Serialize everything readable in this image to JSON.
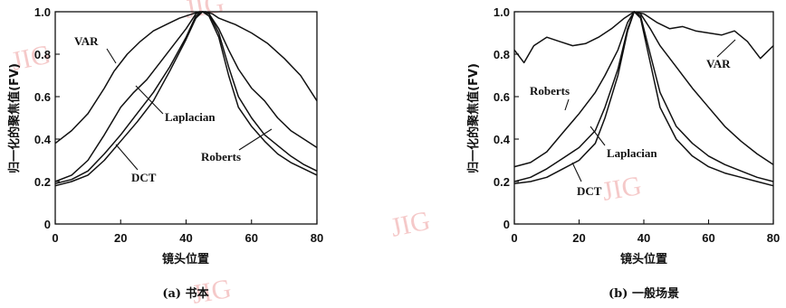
{
  "watermark": "JIG",
  "chart_data": [
    {
      "type": "line",
      "caption": "(a) 书本",
      "xlabel": "镜头位置",
      "ylabel": "归一化的聚焦值(FV)",
      "xlim": [
        0,
        80
      ],
      "ylim": [
        0,
        1.0
      ],
      "xticks": [
        "0",
        "20",
        "40",
        "60",
        "80"
      ],
      "yticks": [
        "0",
        "0.2",
        "0.4",
        "0.6",
        "0.8",
        "1.0"
      ],
      "grid": false,
      "legend": "inline labels",
      "series": [
        {
          "name": "VAR",
          "x": [
            0,
            5,
            10,
            15,
            18,
            22,
            26,
            30,
            34,
            38,
            42,
            44,
            46,
            48,
            50,
            55,
            60,
            65,
            70,
            75,
            80
          ],
          "y": [
            0.38,
            0.44,
            0.52,
            0.64,
            0.72,
            0.8,
            0.86,
            0.91,
            0.94,
            0.97,
            0.99,
            1.0,
            1.0,
            0.99,
            0.97,
            0.94,
            0.9,
            0.85,
            0.78,
            0.7,
            0.58
          ]
        },
        {
          "name": "Roberts",
          "x": [
            0,
            5,
            10,
            15,
            20,
            24,
            28,
            32,
            36,
            40,
            43,
            45,
            47,
            50,
            53,
            56,
            60,
            64,
            68,
            72,
            76,
            80
          ],
          "y": [
            0.2,
            0.23,
            0.3,
            0.42,
            0.55,
            0.62,
            0.68,
            0.76,
            0.84,
            0.92,
            0.99,
            1.0,
            0.99,
            0.92,
            0.82,
            0.73,
            0.64,
            0.58,
            0.5,
            0.44,
            0.4,
            0.36
          ]
        },
        {
          "name": "Laplacian",
          "x": [
            0,
            5,
            10,
            15,
            20,
            25,
            30,
            35,
            40,
            43,
            45,
            47,
            50,
            53,
            56,
            60,
            64,
            68,
            72,
            76,
            80
          ],
          "y": [
            0.19,
            0.21,
            0.25,
            0.33,
            0.42,
            0.52,
            0.62,
            0.74,
            0.88,
            0.98,
            1.0,
            0.99,
            0.9,
            0.74,
            0.6,
            0.5,
            0.42,
            0.37,
            0.32,
            0.28,
            0.25
          ]
        },
        {
          "name": "DCT",
          "x": [
            0,
            5,
            10,
            15,
            20,
            25,
            30,
            35,
            40,
            43,
            45,
            47,
            50,
            53,
            56,
            60,
            64,
            68,
            72,
            76,
            80
          ],
          "y": [
            0.18,
            0.2,
            0.23,
            0.3,
            0.39,
            0.48,
            0.58,
            0.72,
            0.87,
            0.97,
            1.0,
            0.98,
            0.88,
            0.7,
            0.55,
            0.46,
            0.39,
            0.33,
            0.29,
            0.26,
            0.23
          ]
        }
      ],
      "annotations": [
        "VAR",
        "Laplacian",
        "Roberts",
        "DCT"
      ]
    },
    {
      "type": "line",
      "caption": "(b) 一般场景",
      "xlabel": "镜头位置",
      "ylabel": "归一化的聚焦值(FV)",
      "xlim": [
        0,
        80
      ],
      "ylim": [
        0,
        1.0
      ],
      "xticks": [
        "0",
        "20",
        "40",
        "60",
        "80"
      ],
      "yticks": [
        "0",
        "0.2",
        "0.4",
        "0.6",
        "0.8",
        "1.0"
      ],
      "grid": false,
      "legend": "inline labels",
      "series": [
        {
          "name": "VAR",
          "x": [
            0,
            3,
            6,
            10,
            14,
            18,
            22,
            26,
            30,
            34,
            37,
            40,
            44,
            48,
            52,
            56,
            60,
            64,
            68,
            72,
            76,
            80
          ],
          "y": [
            0.82,
            0.76,
            0.84,
            0.88,
            0.86,
            0.84,
            0.85,
            0.88,
            0.92,
            0.97,
            1.0,
            0.99,
            0.95,
            0.92,
            0.93,
            0.91,
            0.9,
            0.89,
            0.91,
            0.86,
            0.78,
            0.84
          ]
        },
        {
          "name": "Roberts",
          "x": [
            0,
            5,
            10,
            15,
            20,
            25,
            28,
            32,
            35,
            37,
            39,
            42,
            45,
            50,
            55,
            60,
            65,
            70,
            75,
            80
          ],
          "y": [
            0.27,
            0.29,
            0.34,
            0.43,
            0.52,
            0.62,
            0.7,
            0.82,
            0.95,
            1.0,
            0.99,
            0.92,
            0.84,
            0.74,
            0.64,
            0.55,
            0.46,
            0.39,
            0.33,
            0.28
          ]
        },
        {
          "name": "Laplacian",
          "x": [
            0,
            5,
            10,
            15,
            20,
            25,
            28,
            32,
            35,
            37,
            39,
            42,
            45,
            50,
            55,
            60,
            65,
            70,
            75,
            80
          ],
          "y": [
            0.2,
            0.22,
            0.26,
            0.31,
            0.36,
            0.44,
            0.55,
            0.73,
            0.92,
            1.0,
            0.98,
            0.8,
            0.62,
            0.46,
            0.38,
            0.32,
            0.28,
            0.25,
            0.22,
            0.2
          ]
        },
        {
          "name": "DCT",
          "x": [
            0,
            5,
            10,
            15,
            20,
            25,
            28,
            32,
            35,
            37,
            39,
            42,
            45,
            50,
            55,
            60,
            65,
            70,
            75,
            80
          ],
          "y": [
            0.19,
            0.2,
            0.22,
            0.26,
            0.3,
            0.38,
            0.5,
            0.7,
            0.91,
            1.0,
            0.97,
            0.76,
            0.55,
            0.4,
            0.32,
            0.27,
            0.24,
            0.22,
            0.2,
            0.18
          ]
        }
      ],
      "annotations": [
        "Roberts",
        "VAR",
        "Laplacian",
        "DCT"
      ]
    }
  ]
}
